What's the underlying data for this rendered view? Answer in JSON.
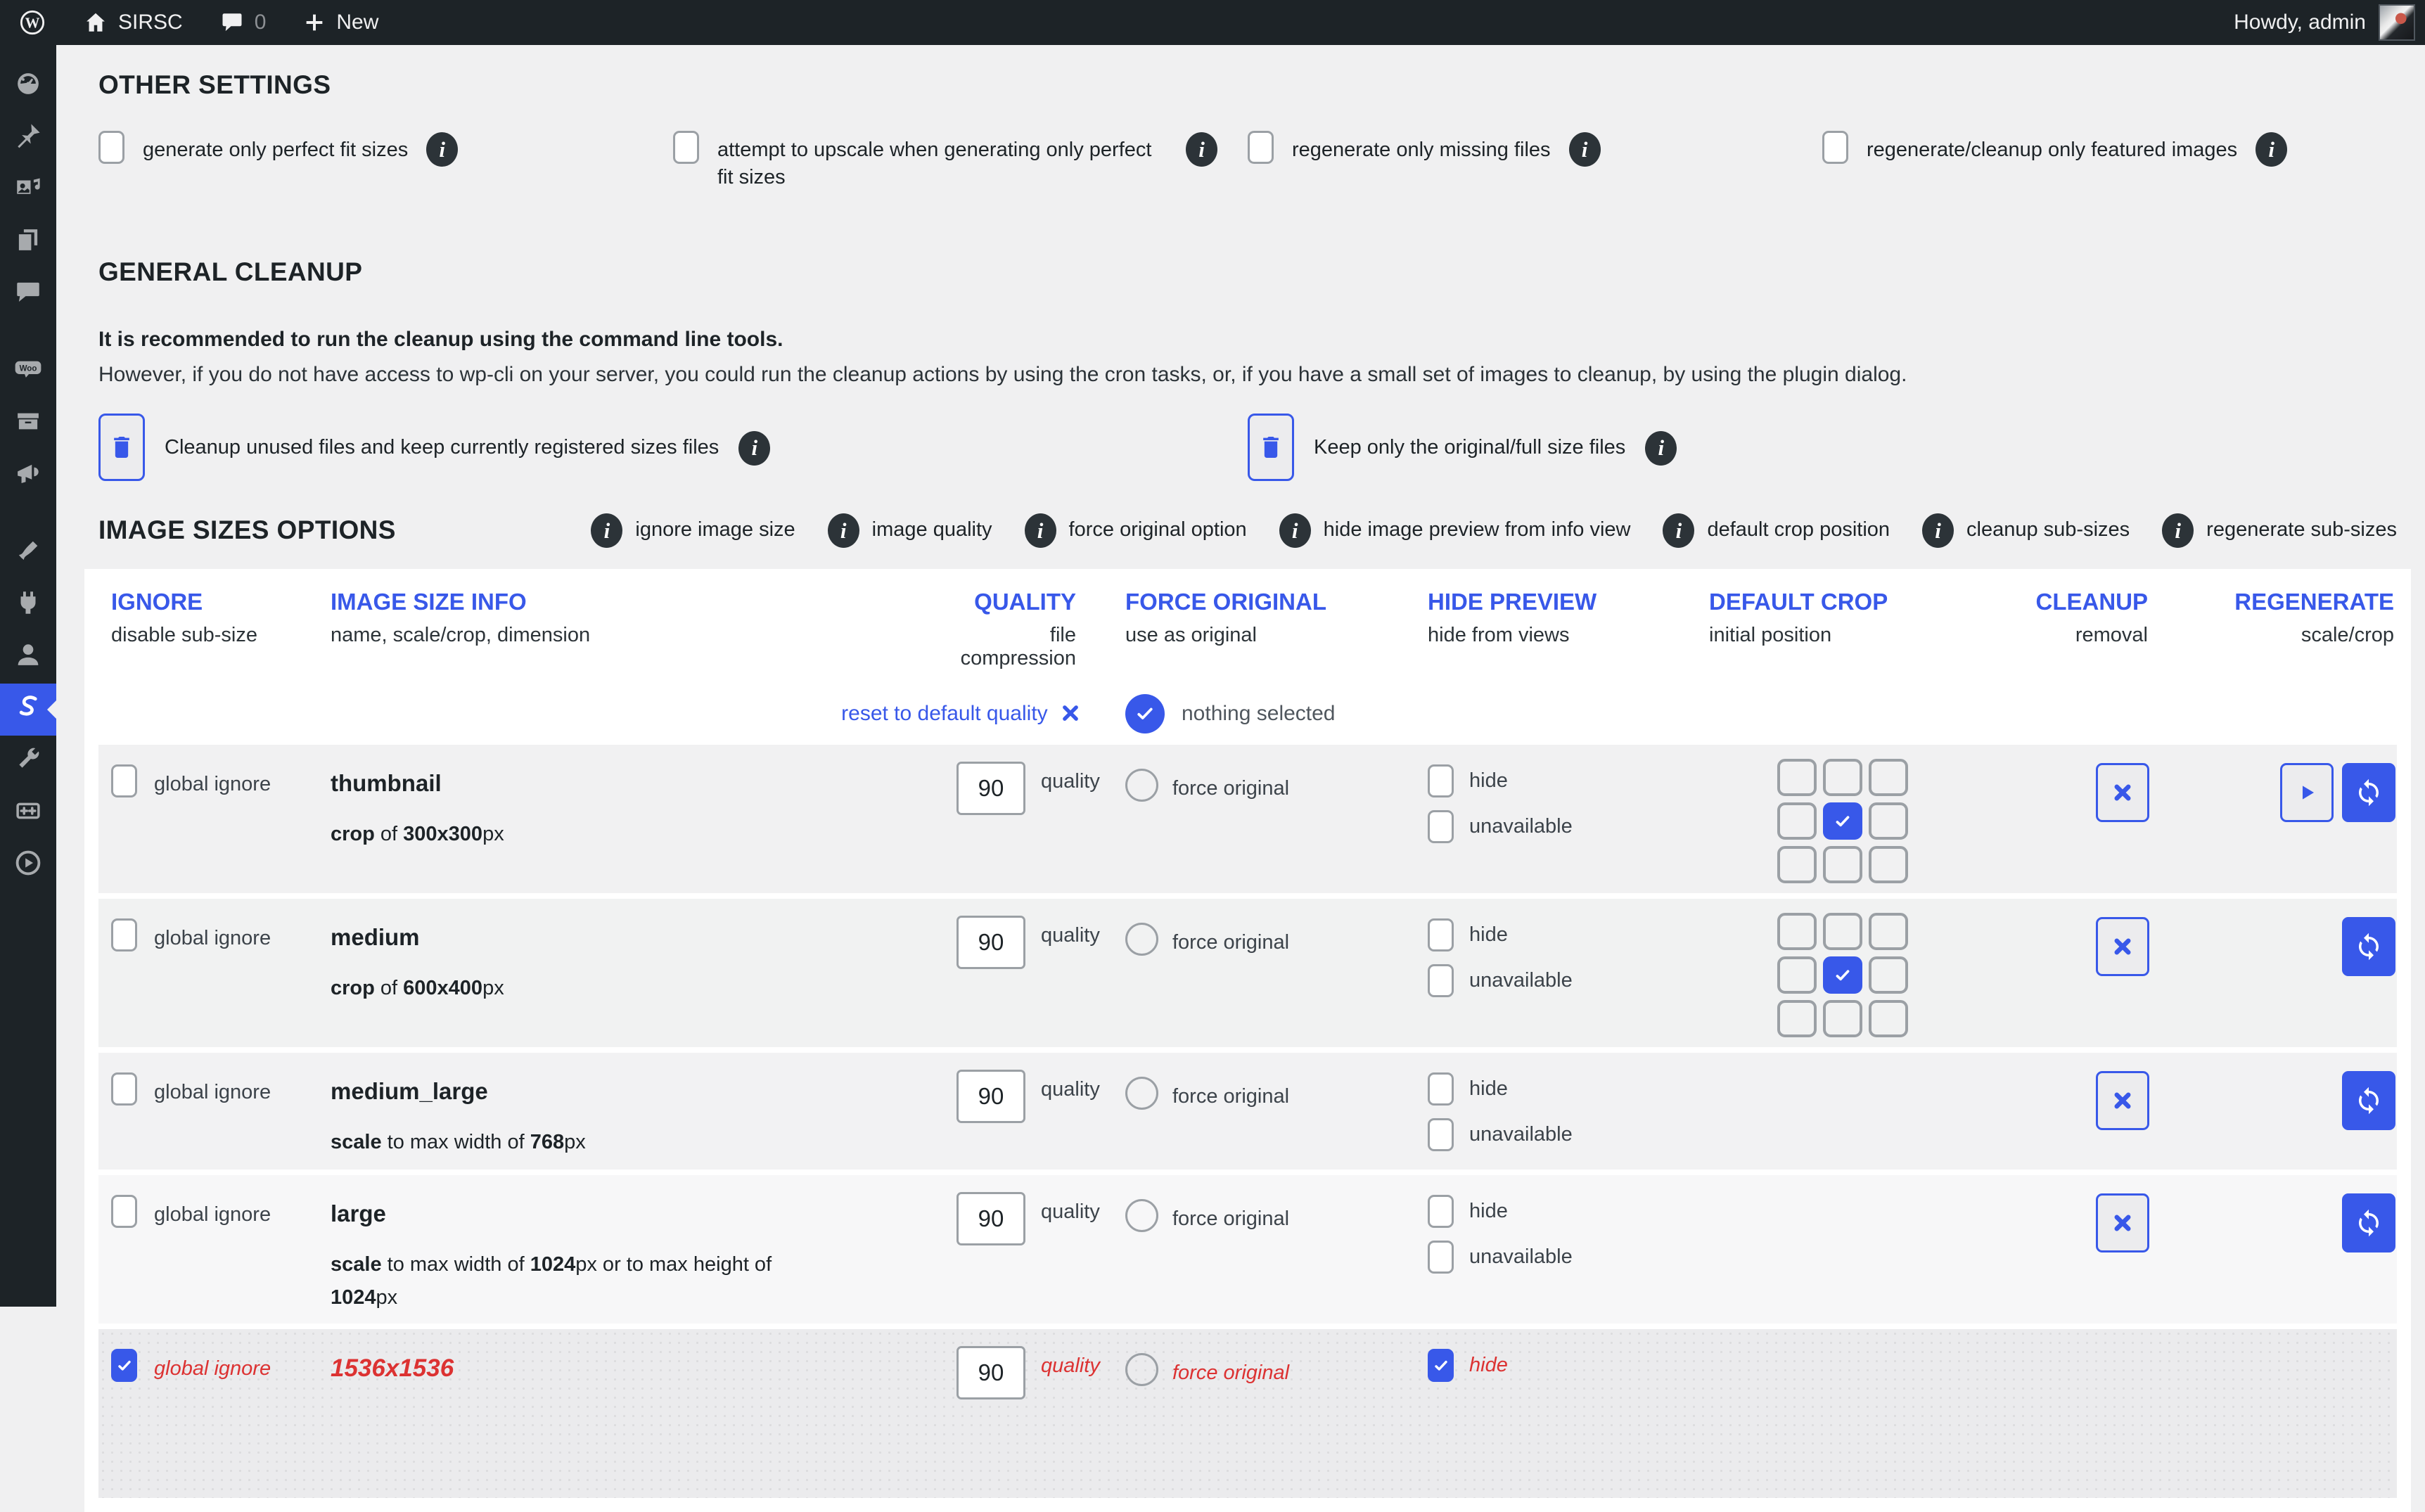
{
  "admin_bar": {
    "site_name": "SIRSC",
    "comment_count": "0",
    "new_label": "New",
    "howdy": "Howdy, admin"
  },
  "sidebar": {
    "items": [
      {
        "icon": "dashboard-icon",
        "active": false
      },
      {
        "icon": "posts-pin-icon",
        "active": false
      },
      {
        "icon": "media-icon",
        "active": false
      },
      {
        "icon": "pages-icon",
        "active": false
      },
      {
        "icon": "comments-icon",
        "active": false
      },
      {
        "icon": "woocommerce-icon",
        "active": false,
        "gap_before": true
      },
      {
        "icon": "products-icon",
        "active": false
      },
      {
        "icon": "marketing-icon",
        "active": false,
        "gap_after": true
      },
      {
        "icon": "appearance-icon",
        "active": false
      },
      {
        "icon": "plugins-icon",
        "active": false
      },
      {
        "icon": "users-icon",
        "active": false
      },
      {
        "icon": "sirsc-icon",
        "active": true
      },
      {
        "icon": "tools-icon",
        "active": false
      },
      {
        "icon": "image-resize-icon",
        "active": false
      },
      {
        "icon": "video-icon",
        "active": false
      }
    ]
  },
  "other_settings": {
    "title": "OTHER SETTINGS",
    "options": [
      "generate only perfect fit sizes",
      "attempt to upscale when generating only perfect fit sizes",
      "regenerate only missing files",
      "regenerate/cleanup only featured images"
    ]
  },
  "general_cleanup": {
    "title": "GENERAL CLEANUP",
    "intro_bold": "It is recommended to run the cleanup using the command line tools.",
    "intro_text": "However, if you do not have access to wp-cli on your server, you could run the cleanup actions by using the cron tasks, or, if you have a small set of images to cleanup, by using the plugin dialog.",
    "buttons": [
      "Cleanup unused files and keep currently registered sizes files",
      "Keep only the original/full size files"
    ]
  },
  "image_sizes": {
    "title": "IMAGE SIZES OPTIONS",
    "legend": [
      "ignore image size",
      "image quality",
      "force original option",
      "hide image preview from info view",
      "default crop position",
      "cleanup sub-sizes",
      "regenerate sub-sizes"
    ]
  },
  "table": {
    "columns": [
      {
        "title": "IGNORE",
        "sub": "disable sub-size"
      },
      {
        "title": "IMAGE SIZE INFO",
        "sub": "name, scale/crop, dimension"
      },
      {
        "title": "QUALITY",
        "sub": "file compression"
      },
      {
        "title": "FORCE ORIGINAL",
        "sub": "use as original"
      },
      {
        "title": "HIDE PREVIEW",
        "sub": "hide from views"
      },
      {
        "title": "DEFAULT CROP",
        "sub": "initial position"
      },
      {
        "title": "CLEANUP",
        "sub": "removal"
      },
      {
        "title": "REGENERATE",
        "sub": "scale/crop"
      }
    ],
    "reset_quality_label": "reset to default quality",
    "nothing_selected_label": "nothing selected",
    "row_labels": {
      "ignore": "global ignore",
      "quality": "quality",
      "force": "force original",
      "hide": "hide",
      "unavailable": "unavailable"
    },
    "rows": [
      {
        "name": "thumbnail",
        "desc": [
          [
            "crop",
            true
          ],
          [
            " of ",
            false
          ],
          [
            "300x300",
            true
          ],
          [
            "px",
            false
          ]
        ],
        "quality": "90",
        "has_grid": true,
        "grid_checked": 4,
        "has_play": true,
        "has_cleanup": true,
        "has_regen": true,
        "ignored": false,
        "hidden": false,
        "red": false,
        "partial": false
      },
      {
        "name": "medium",
        "desc": [
          [
            "crop",
            true
          ],
          [
            " of ",
            false
          ],
          [
            "600x400",
            true
          ],
          [
            "px",
            false
          ]
        ],
        "quality": "90",
        "has_grid": true,
        "grid_checked": 4,
        "has_play": false,
        "has_cleanup": true,
        "has_regen": true,
        "ignored": false,
        "hidden": false,
        "red": false,
        "partial": false
      },
      {
        "name": "medium_large",
        "desc": [
          [
            "scale",
            true
          ],
          [
            " to max width of ",
            false
          ],
          [
            "768",
            true
          ],
          [
            "px",
            false
          ]
        ],
        "quality": "90",
        "has_grid": false,
        "grid_checked": -1,
        "has_play": false,
        "has_cleanup": true,
        "has_regen": true,
        "ignored": false,
        "hidden": false,
        "red": false,
        "partial": false
      },
      {
        "name": "large",
        "desc": [
          [
            "scale",
            true
          ],
          [
            " to max width of ",
            false
          ],
          [
            "1024",
            true
          ],
          [
            "px or to max height of ",
            false
          ],
          [
            "1024",
            true
          ],
          [
            "px",
            false
          ]
        ],
        "quality": "90",
        "has_grid": false,
        "grid_checked": -1,
        "has_play": false,
        "has_cleanup": true,
        "has_regen": true,
        "ignored": false,
        "hidden": false,
        "red": false,
        "partial": false
      },
      {
        "name": "1536x1536",
        "desc": [],
        "quality": "90",
        "has_grid": false,
        "grid_checked": -1,
        "has_play": false,
        "has_cleanup": false,
        "has_regen": false,
        "ignored": true,
        "hidden": true,
        "red": true,
        "partial": true
      }
    ]
  },
  "colors": {
    "accent": "#3858e9",
    "danger": "#dc3232",
    "bar": "#1d2327"
  }
}
